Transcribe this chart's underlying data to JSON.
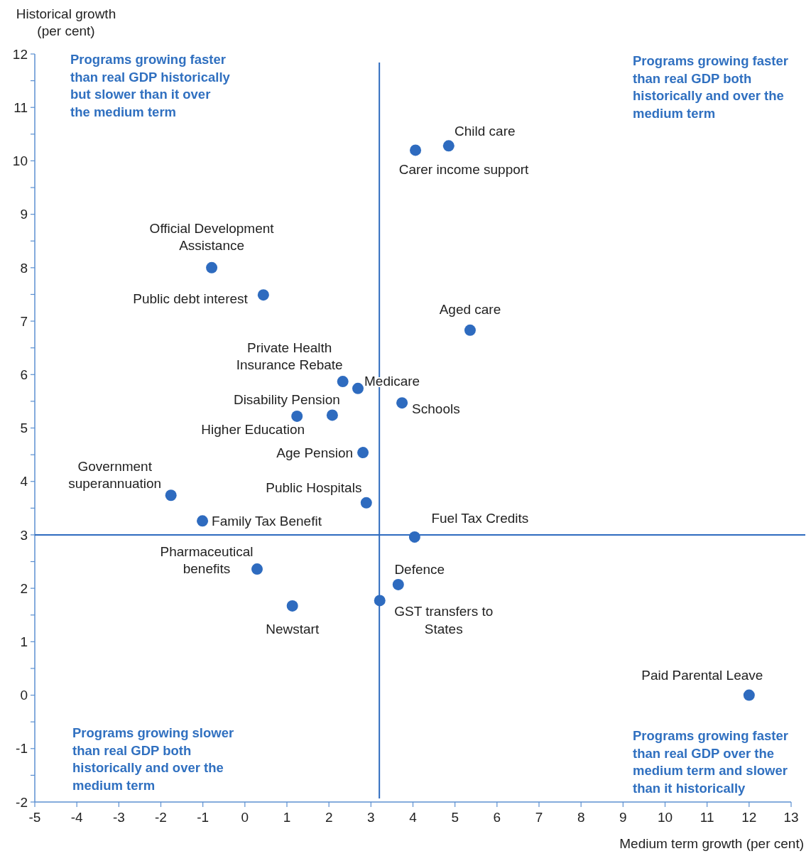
{
  "chart_data": {
    "type": "scatter",
    "xlabel": "Medium term growth (per cent)",
    "ylabel": "Historical growth (per cent)",
    "xlim": [
      -5,
      13
    ],
    "xticks": [
      -5,
      -4,
      -3,
      -2,
      -1,
      0,
      1,
      2,
      3,
      4,
      5,
      6,
      7,
      8,
      9,
      10,
      11,
      12,
      13
    ],
    "ylim": [
      -2,
      12
    ],
    "yticks": [
      -2,
      {
        "value": -1.5,
        "label": null
      },
      -1,
      {
        "value": -0.5,
        "label": null
      },
      0,
      {
        "value": 0.5,
        "label": null
      },
      1,
      {
        "value": 1.5,
        "label": null
      },
      2,
      {
        "value": 2.5,
        "label": null
      },
      3,
      {
        "value": 3.5,
        "label": null
      },
      4,
      {
        "value": 4.5,
        "label": null
      },
      5,
      {
        "value": 5.5,
        "label": null
      },
      6,
      {
        "value": 6.5,
        "label": null
      },
      7,
      {
        "value": 7.5,
        "label": null
      },
      8,
      {
        "value": 8.5,
        "label": null
      },
      9,
      {
        "value": 9.5,
        "label": null
      },
      10,
      {
        "value": 10.5,
        "label": null
      },
      11,
      {
        "value": 11.5,
        "label": null
      },
      12
    ],
    "grid": false,
    "marker": "circle",
    "series": [
      {
        "color": "#2e6bbf",
        "x": [
          4.85,
          4.06,
          -0.79,
          0.44,
          5.36,
          2.33,
          2.69,
          3.74,
          2.08,
          1.24,
          2.81,
          2.89,
          -1.76,
          -1.01,
          4.04,
          0.29,
          3.65,
          3.21,
          1.13,
          12.0
        ],
        "values": [
          10.28,
          10.2,
          8.0,
          7.49,
          6.83,
          5.87,
          5.74,
          5.47,
          5.24,
          5.22,
          4.54,
          3.6,
          3.74,
          3.26,
          2.96,
          2.36,
          2.07,
          1.77,
          1.67,
          0.0
        ]
      }
    ],
    "ref_lines": [
      {
        "axis": "x",
        "value": 3.2,
        "color": "#2e6bbf"
      },
      {
        "axis": "y",
        "value": 3,
        "color": "#2e6bbf"
      }
    ],
    "annotations": [
      {
        "text": "Child care",
        "x": 4.85,
        "y": 10.28
      },
      {
        "text": "Carer income support",
        "x": 4.06,
        "y": 10.2
      },
      {
        "text": "Official Development Assistance",
        "x": -0.79,
        "y": 8.0
      },
      {
        "text": "Public debt interest",
        "x": 0.44,
        "y": 7.49
      },
      {
        "text": "Aged care",
        "x": 5.36,
        "y": 6.83
      },
      {
        "text": "Private Health Insurance Rebate",
        "x": 2.33,
        "y": 5.87
      },
      {
        "text": "Medicare",
        "x": 2.69,
        "y": 5.74
      },
      {
        "text": "Schools",
        "x": 3.74,
        "y": 5.47
      },
      {
        "text": "Disability Pension",
        "x": 2.08,
        "y": 5.24
      },
      {
        "text": "Higher Education",
        "x": 1.24,
        "y": 5.22
      },
      {
        "text": "Age Pension",
        "x": 2.81,
        "y": 4.54
      },
      {
        "text": "Public Hospitals",
        "x": 2.89,
        "y": 3.6
      },
      {
        "text": "Government superannuation",
        "x": -1.76,
        "y": 3.74
      },
      {
        "text": "Family Tax Benefit",
        "x": -1.01,
        "y": 3.26
      },
      {
        "text": "Fuel Tax Credits",
        "x": 4.04,
        "y": 2.96
      },
      {
        "text": "Pharmaceutical benefits",
        "x": 0.29,
        "y": 2.36
      },
      {
        "text": "Defence",
        "x": 3.65,
        "y": 2.07
      },
      {
        "text": "GST transfers to States",
        "x": 3.21,
        "y": 1.77
      },
      {
        "text": "Newstart",
        "x": 1.13,
        "y": 1.67
      },
      {
        "text": "Paid Parental Leave",
        "x": 12.0,
        "y": 0.0
      },
      "Programs growing faster than real GDP historically but slower than it over the medium term",
      "Programs growing faster than real GDP both historically and over the medium term",
      "Programs growing slower than real GDP both historically and over the medium term",
      "Programs growing faster than real GDP over the medium term and slower than it historically"
    ]
  }
}
